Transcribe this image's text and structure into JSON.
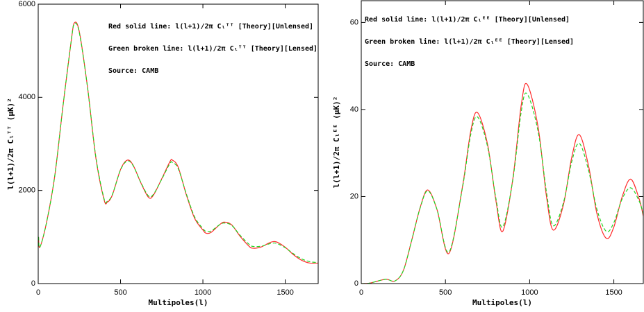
{
  "chart_data": [
    {
      "type": "line",
      "xlabel": "Multipoles(l)",
      "ylabel": "l(l+1)/2π Cₗᵀᵀ (μK)²",
      "xlim": [
        0,
        1700
      ],
      "ylim": [
        0,
        6000
      ],
      "xticks": [
        0,
        500,
        1000,
        1500
      ],
      "yticks": [
        0,
        2000,
        4000,
        6000
      ],
      "legend": "upper-right",
      "x": [
        2,
        10,
        50,
        100,
        150,
        200,
        220,
        250,
        300,
        350,
        400,
        420,
        450,
        500,
        540,
        575,
        625,
        670,
        700,
        750,
        800,
        815,
        850,
        900,
        950,
        1000,
        1020,
        1050,
        1100,
        1130,
        1175,
        1225,
        1275,
        1300,
        1350,
        1400,
        1425,
        1450,
        1500,
        1550,
        1600,
        1650,
        1700
      ],
      "series": [
        {
          "name": "Red solid line: l(l+1)/2π Cₗᵀᵀ [Theory][Unlensed]",
          "color": "#ff2a2a",
          "dash": false,
          "values": [
            1000,
            780,
            1300,
            2300,
            3800,
            5200,
            5600,
            5400,
            4200,
            2700,
            1800,
            1750,
            1900,
            2450,
            2650,
            2550,
            2150,
            1850,
            1900,
            2250,
            2620,
            2650,
            2500,
            1900,
            1400,
            1150,
            1080,
            1100,
            1260,
            1320,
            1260,
            1020,
            820,
            760,
            780,
            870,
            900,
            890,
            780,
            620,
            500,
            440,
            440
          ]
        },
        {
          "name": "Green broken line: l(l+1)/2π Cₗᵀᵀ [Theory][Lensed]",
          "color": "#22d622",
          "dash": true,
          "values": [
            1000,
            780,
            1300,
            2300,
            3800,
            5200,
            5580,
            5380,
            4200,
            2720,
            1820,
            1770,
            1910,
            2440,
            2630,
            2540,
            2160,
            1880,
            1920,
            2240,
            2580,
            2600,
            2470,
            1920,
            1430,
            1180,
            1120,
            1130,
            1260,
            1300,
            1250,
            1040,
            860,
            800,
            800,
            850,
            870,
            860,
            770,
            640,
            530,
            470,
            450
          ]
        }
      ],
      "annotations": [
        {
          "text": "Source: CAMB",
          "color": "#00e8f0"
        }
      ]
    },
    {
      "type": "line",
      "xlabel": "Multipoles(l)",
      "ylabel": "l(l+1)/2π Cₗᴱᴱ (μK)²",
      "xlim": [
        0,
        1675
      ],
      "ylim": [
        0,
        65
      ],
      "xticks": [
        0,
        500,
        1000,
        1500
      ],
      "yticks": [
        0,
        20,
        40,
        60
      ],
      "legend": "upper-left",
      "x": [
        2,
        50,
        100,
        150,
        200,
        250,
        300,
        350,
        395,
        450,
        520,
        600,
        650,
        690,
        750,
        800,
        840,
        900,
        950,
        985,
        1050,
        1100,
        1140,
        1200,
        1250,
        1295,
        1350,
        1400,
        1455,
        1500,
        1550,
        1600,
        1650,
        1675
      ],
      "series": [
        {
          "name": "Red solid line: l(l+1)/2π Cₗᴱᴱ [Theory][Unlensed]",
          "color": "#ff2a2a",
          "dash": false,
          "values": [
            0,
            0.1,
            0.6,
            1.0,
            0.6,
            3,
            10,
            17.5,
            21.5,
            17,
            6.9,
            22,
            35,
            39.3,
            32,
            19,
            12,
            24,
            41,
            45.8,
            36,
            20,
            12.3,
            18,
            29,
            34.2,
            27,
            16,
            10.4,
            13,
            20,
            24,
            19.5,
            15.5
          ]
        },
        {
          "name": "Green broken line: l(l+1)/2π Cₗᴱᴱ [Theory][Lensed]",
          "color": "#22d622",
          "dash": true,
          "values": [
            0,
            0.1,
            0.6,
            1.0,
            0.6,
            3,
            10,
            17.4,
            21.3,
            17,
            7.2,
            21.8,
            34.2,
            38.3,
            31.5,
            19.5,
            13,
            23.8,
            39.5,
            43.6,
            35,
            21,
            13.3,
            18.5,
            28,
            32.2,
            26,
            17,
            12,
            14,
            19.5,
            22,
            19,
            16
          ]
        }
      ],
      "annotations": [
        {
          "text": "Source: CAMB",
          "color": "#00e8f0"
        }
      ]
    }
  ]
}
